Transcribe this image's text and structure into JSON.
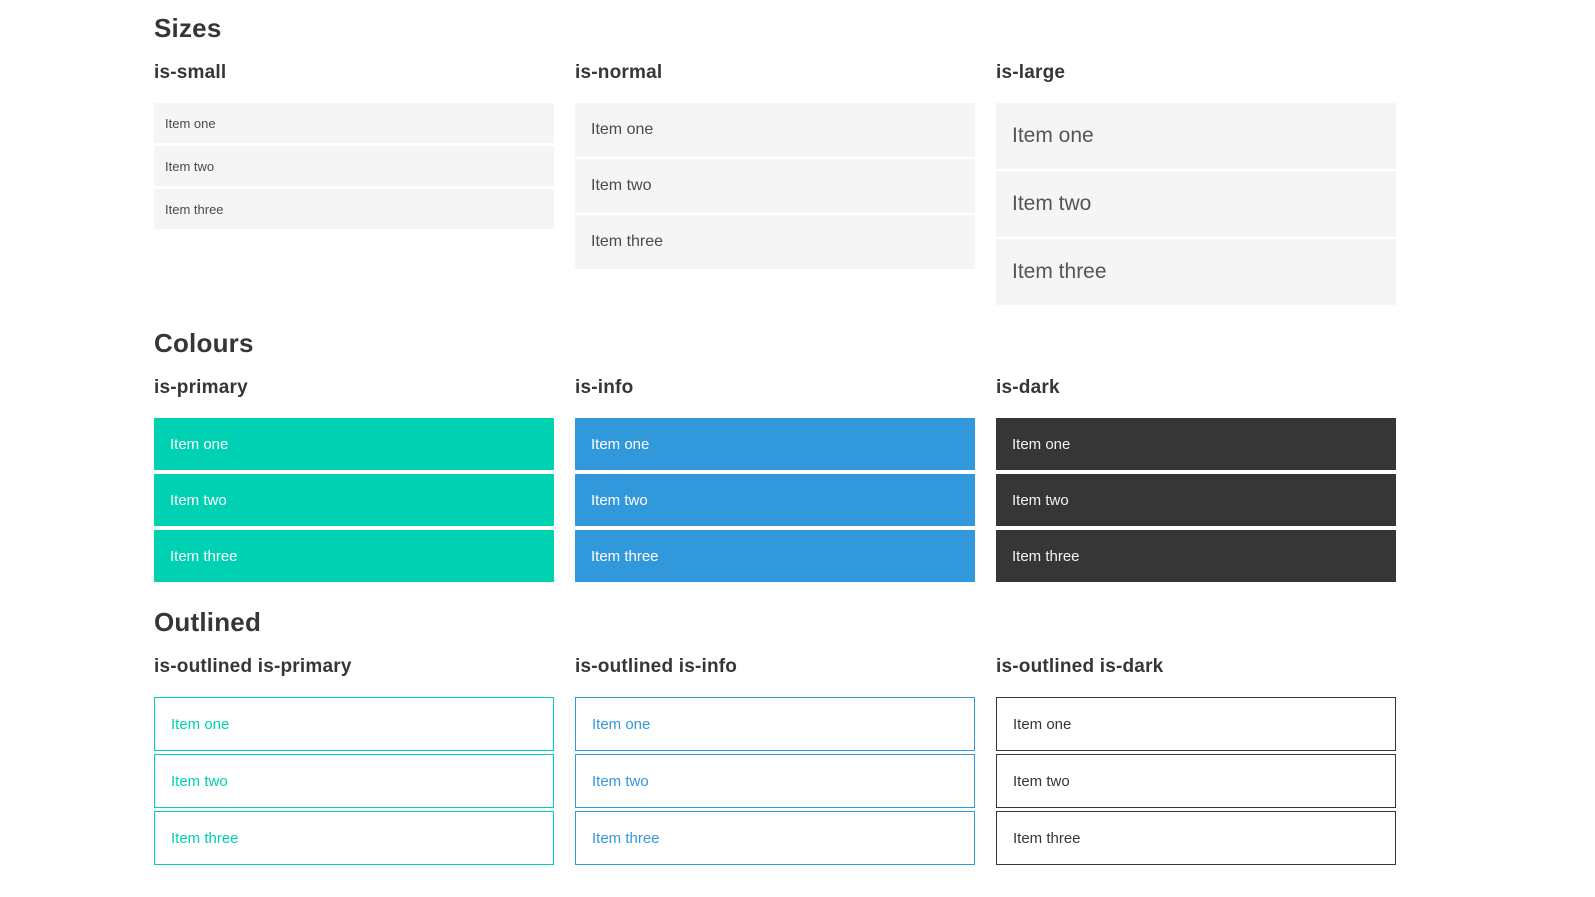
{
  "colors": {
    "primary": "#00d1b2",
    "info": "#3298dc",
    "dark": "#363636",
    "item_background": "#f5f5f5",
    "item_text": "#4a4a4a",
    "heading_text": "#363636",
    "light_text": "#ffffff",
    "dark_item_text": "#f2f2f2"
  },
  "sections": [
    {
      "title": "Sizes",
      "columns": [
        {
          "heading": "is-small",
          "variant": "small",
          "items": [
            "Item one",
            "Item two",
            "Item three"
          ]
        },
        {
          "heading": "is-normal",
          "variant": "normal",
          "items": [
            "Item one",
            "Item two",
            "Item three"
          ]
        },
        {
          "heading": "is-large",
          "variant": "large",
          "items": [
            "Item one",
            "Item two",
            "Item three"
          ]
        }
      ]
    },
    {
      "title": "Colours",
      "columns": [
        {
          "heading": "is-primary",
          "variant": "primary",
          "items": [
            "Item one",
            "Item two",
            "Item three"
          ]
        },
        {
          "heading": "is-info",
          "variant": "info",
          "items": [
            "Item one",
            "Item two",
            "Item three"
          ]
        },
        {
          "heading": "is-dark",
          "variant": "dark",
          "items": [
            "Item one",
            "Item two",
            "Item three"
          ]
        }
      ]
    },
    {
      "title": "Outlined",
      "columns": [
        {
          "heading": "is-outlined is-primary",
          "variant": "outlined-primary",
          "items": [
            "Item one",
            "Item two",
            "Item three"
          ]
        },
        {
          "heading": "is-outlined is-info",
          "variant": "outlined-info",
          "items": [
            "Item one",
            "Item two",
            "Item three"
          ]
        },
        {
          "heading": "is-outlined is-dark",
          "variant": "outlined-dark",
          "items": [
            "Item one",
            "Item two",
            "Item three"
          ]
        }
      ]
    }
  ]
}
